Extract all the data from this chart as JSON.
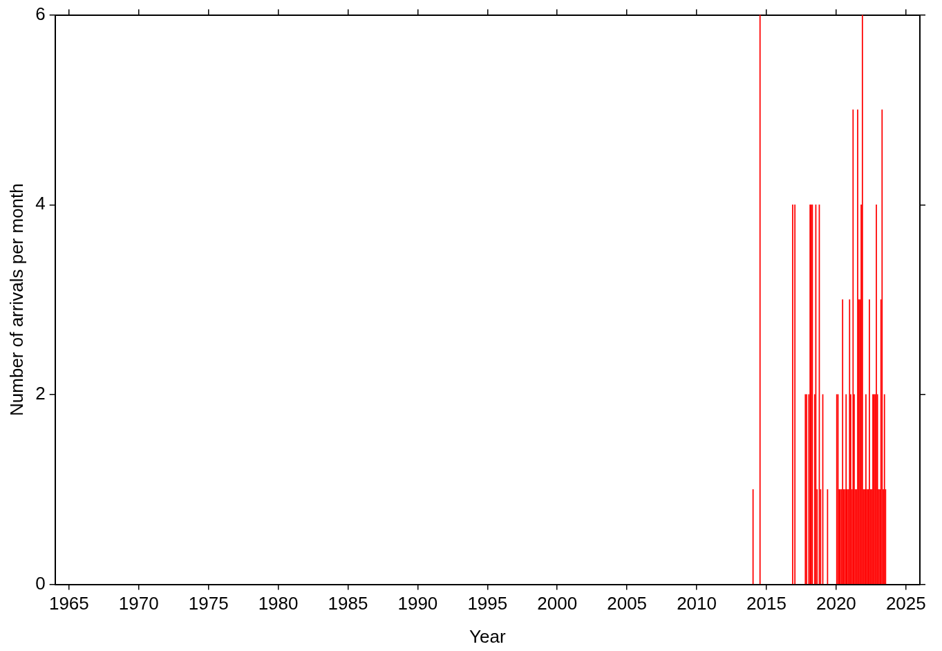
{
  "chart_data": {
    "type": "bar",
    "xlabel": "Year",
    "ylabel": "Number of arrivals per month",
    "x": [
      2014.04,
      2014.54,
      2016.88,
      2017.04,
      2017.79,
      2017.88,
      2018.04,
      2018.13,
      2018.21,
      2018.29,
      2018.46,
      2018.54,
      2018.63,
      2018.79,
      2018.88,
      2019.04,
      2019.38,
      2020.04,
      2020.13,
      2020.21,
      2020.29,
      2020.38,
      2020.46,
      2020.54,
      2020.63,
      2020.71,
      2020.79,
      2020.88,
      2020.96,
      2021.04,
      2021.13,
      2021.21,
      2021.29,
      2021.38,
      2021.46,
      2021.54,
      2021.63,
      2021.71,
      2021.79,
      2021.88,
      2021.96,
      2022.04,
      2022.13,
      2022.21,
      2022.29,
      2022.38,
      2022.46,
      2022.54,
      2022.63,
      2022.71,
      2022.79,
      2022.88,
      2022.96,
      2023.04,
      2023.13,
      2023.21,
      2023.29,
      2023.38,
      2023.46,
      2023.54
    ],
    "series": [
      {
        "color": "#ff0000",
        "values": [
          1,
          6,
          4,
          4,
          2,
          2,
          2,
          4,
          4,
          4,
          2,
          4,
          1,
          4,
          1,
          2,
          1,
          2,
          2,
          1,
          1,
          1,
          3,
          1,
          1,
          2,
          1,
          1,
          3,
          2,
          1,
          5,
          2,
          1,
          1,
          5,
          3,
          3,
          4,
          6,
          1,
          1,
          2,
          1,
          1,
          3,
          1,
          1,
          2,
          2,
          2,
          4,
          2,
          1,
          1,
          3,
          5,
          1,
          2,
          1
        ]
      }
    ],
    "xlim": [
      1964,
      2026
    ],
    "xticks": [
      1965,
      1970,
      1975,
      1980,
      1985,
      1990,
      1995,
      2000,
      2005,
      2010,
      2015,
      2020,
      2025
    ],
    "ylim": [
      0,
      6
    ],
    "yticks": [
      0,
      2,
      4,
      6
    ],
    "legend": false
  }
}
